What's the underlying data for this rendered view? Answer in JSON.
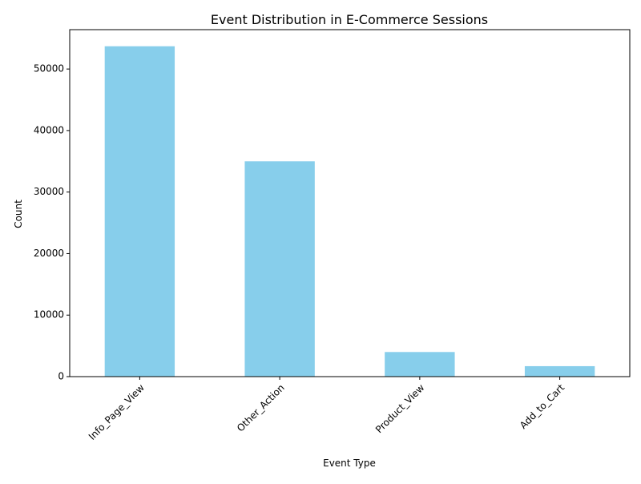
{
  "chart_data": {
    "type": "bar",
    "title": "Event Distribution in E-Commerce Sessions",
    "xlabel": "Event Type",
    "ylabel": "Count",
    "categories": [
      "Info_Page_View",
      "Other_Action",
      "Product_View",
      "Add_to_Cart"
    ],
    "values": [
      53700,
      35000,
      4000,
      1700
    ],
    "ylim": [
      0,
      56400
    ],
    "yticks": [
      0,
      10000,
      20000,
      30000,
      40000,
      50000
    ],
    "ytick_labels": [
      "0",
      "10000",
      "20000",
      "30000",
      "40000",
      "50000"
    ],
    "bar_color": "#87ceeb",
    "grid": false,
    "legend": false,
    "xtick_rotation": 45
  }
}
